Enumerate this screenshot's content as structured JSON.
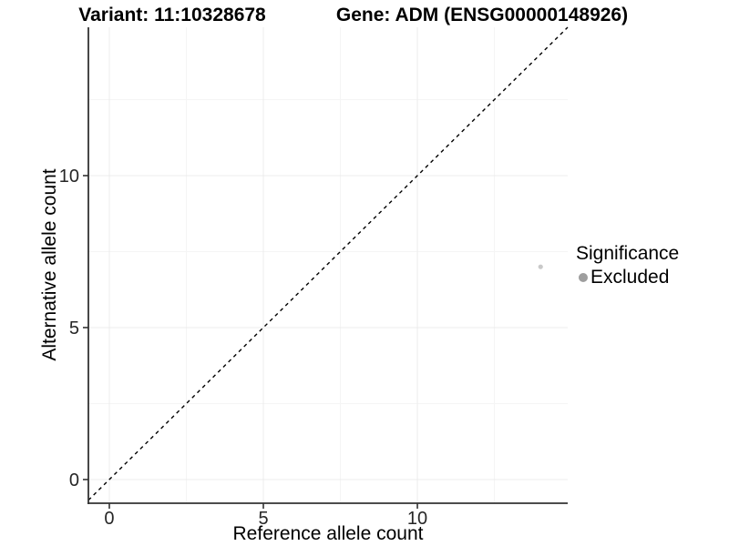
{
  "titles": {
    "variant": "Variant: 11:10328678",
    "gene": "Gene: ADM (ENSG00000148926)"
  },
  "chart_data": {
    "type": "scatter",
    "title_left": "Variant: 11:10328678",
    "title_right": "Gene: ADM (ENSG00000148926)",
    "xlabel": "Reference allele count",
    "ylabel": "Alternative allele count",
    "xlim": [
      -0.68,
      14.88
    ],
    "ylim": [
      -0.78,
      14.88
    ],
    "x_ticks": [
      0,
      5,
      10
    ],
    "y_ticks": [
      0,
      5,
      10
    ],
    "x_minor_ticks": [
      2.5,
      7.5,
      12.5
    ],
    "y_minor_ticks": [
      2.5,
      7.5,
      12.5
    ],
    "grid": true,
    "identity_line": {
      "slope": 1,
      "intercept": 0,
      "style": "dashed",
      "color": "#000000",
      "width": 1.4,
      "dash": "4 4"
    },
    "series": [
      {
        "name": "Excluded",
        "color": "#c9c9c9",
        "point_radius": 2.6,
        "points": [
          {
            "x": 14,
            "y": 7
          }
        ]
      }
    ],
    "legend": {
      "title": "Significance",
      "position": "right",
      "items": [
        {
          "label": "Excluded",
          "color": "#9e9e9e"
        }
      ]
    },
    "style": {
      "grid_major_color": "#ececec",
      "grid_minor_color": "#f5f5f5",
      "axis_line_color": "#333333",
      "tick_color": "#333333",
      "tick_label_color": "#262626",
      "tick_label_size": 20
    }
  }
}
